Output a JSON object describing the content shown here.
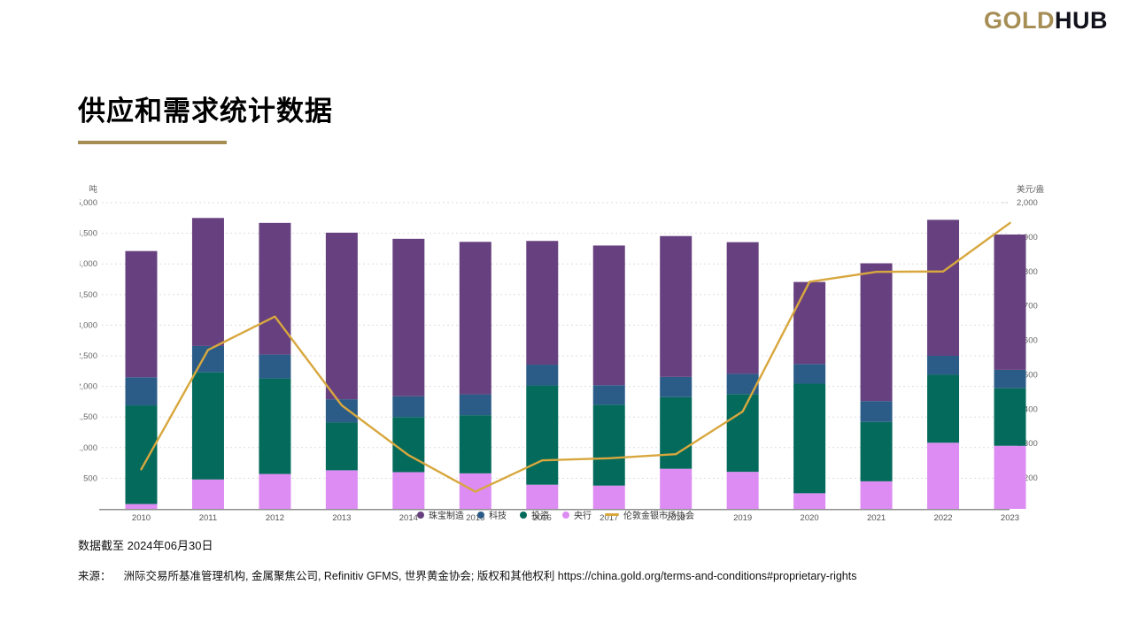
{
  "header": {
    "logo_gold": "GOLD",
    "logo_black": "HUB"
  },
  "page_title": "供应和需求统计数据",
  "chart_data": {
    "type": "bar",
    "subtype": "stacked-bars-with-line-overlay",
    "title": "供应和需求统计数据",
    "x": [
      2010,
      2011,
      2012,
      2013,
      2014,
      2015,
      2016,
      2017,
      2018,
      2019,
      2020,
      2021,
      2022,
      2023
    ],
    "left_axis": {
      "label": "吨",
      "min": 0,
      "max": 5000,
      "tick_step": 500,
      "first_tick": 500
    },
    "right_axis": {
      "label": "美元/盎司",
      "plot_min": 1110,
      "max": 2000,
      "tick_step": 100,
      "first_tick": 1200
    },
    "grid": "horizontal dashed",
    "legend_position": "bottom centered, overlapping x-axis labels",
    "series": [
      {
        "name": "珠宝制造",
        "color": "#67417F",
        "values": [
          2060,
          2090,
          2150,
          2720,
          2570,
          2490,
          2020,
          2280,
          2300,
          2150,
          1340,
          2250,
          2220,
          2210
        ]
      },
      {
        "name": "科技",
        "color": "#2B5B87",
        "values": [
          460,
          430,
          390,
          380,
          340,
          340,
          340,
          320,
          330,
          330,
          320,
          340,
          310,
          300
        ]
      },
      {
        "name": "投资",
        "color": "#046A5B",
        "values": [
          1610,
          1750,
          1560,
          780,
          900,
          950,
          1620,
          1320,
          1170,
          1270,
          1790,
          970,
          1110,
          940
        ]
      },
      {
        "name": "央行",
        "color": "#DC8CF2",
        "values": [
          80,
          480,
          570,
          630,
          600,
          580,
          395,
          380,
          655,
          605,
          255,
          450,
          1080,
          1030
        ]
      }
    ],
    "stack_order_bottom_to_top": [
      "央行",
      "投资",
      "科技",
      "珠宝制造"
    ],
    "line_series": {
      "name": "伦敦金银市场协会",
      "color": "#D8A73E",
      "axis": "right",
      "values": [
        1225,
        1572,
        1669,
        1411,
        1266,
        1160,
        1251,
        1257,
        1269,
        1393,
        1770,
        1799,
        1800,
        1941
      ]
    }
  },
  "footer": {
    "as_of": "数据截至 2024年06月30日",
    "source_label": "来源：",
    "source_text": "洲际交易所基准管理机构, 金属聚焦公司, Refinitiv GFMS, 世界黄金协会; 版权和其他权利 https://china.gold.org/terms-and-conditions#proprietary-rights"
  }
}
